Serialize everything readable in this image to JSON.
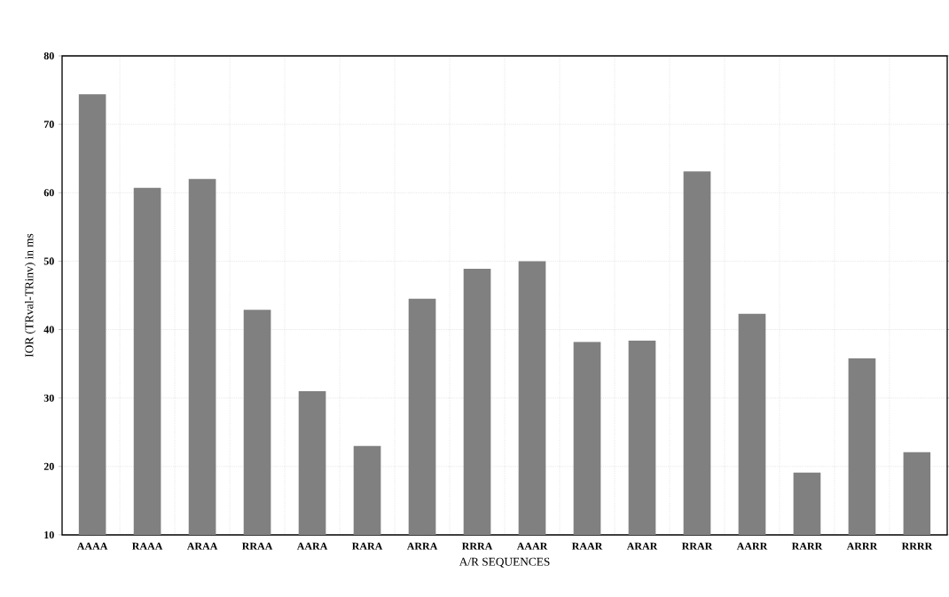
{
  "chart_data": {
    "type": "bar",
    "xlabel": "A/R SEQUENCES",
    "ylabel": "IOR (TRval-TRinv) in ms",
    "categories": [
      "AAAA",
      "RAAA",
      "ARAA",
      "RRAA",
      "AARA",
      "RARA",
      "ARRA",
      "RRRA",
      "AAAR",
      "RAAR",
      "ARAR",
      "RRAR",
      "AARR",
      "RARR",
      "ARRR",
      "RRRR"
    ],
    "values": [
      74.4,
      60.7,
      62.0,
      42.9,
      31.0,
      23.0,
      44.5,
      48.9,
      50.0,
      38.2,
      38.4,
      63.1,
      42.3,
      19.1,
      35.8,
      22.1
    ],
    "color": "#808080",
    "ylim": [
      10,
      80
    ],
    "yticks": [
      10,
      20,
      30,
      40,
      50,
      60,
      70,
      80
    ],
    "grid": true
  }
}
